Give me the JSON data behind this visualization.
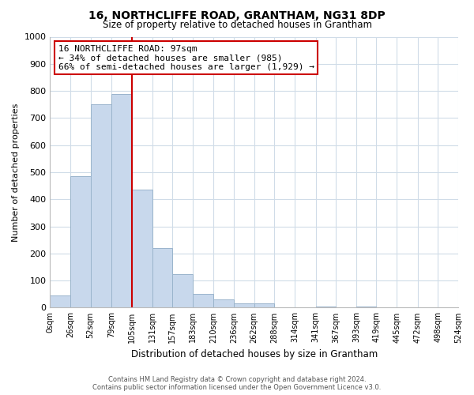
{
  "title": "16, NORTHCLIFFE ROAD, GRANTHAM, NG31 8DP",
  "subtitle": "Size of property relative to detached houses in Grantham",
  "xlabel": "Distribution of detached houses by size in Grantham",
  "ylabel": "Number of detached properties",
  "footer_line1": "Contains HM Land Registry data © Crown copyright and database right 2024.",
  "footer_line2": "Contains public sector information licensed under the Open Government Licence v3.0.",
  "bar_left_edges": [
    0,
    26,
    52,
    79,
    105,
    131,
    157,
    183,
    210,
    236,
    262,
    288,
    314,
    341,
    367,
    393,
    419,
    445,
    472,
    498
  ],
  "bar_widths": [
    26,
    26,
    27,
    26,
    26,
    26,
    26,
    27,
    26,
    26,
    26,
    26,
    27,
    26,
    26,
    26,
    26,
    27,
    26,
    26
  ],
  "bar_heights": [
    45,
    485,
    750,
    790,
    435,
    220,
    125,
    50,
    30,
    15,
    15,
    0,
    0,
    5,
    0,
    5,
    0,
    0,
    0,
    0
  ],
  "bar_color": "#c8d8ec",
  "bar_edgecolor": "#9ab4cc",
  "ylim": [
    0,
    1000
  ],
  "yticks": [
    0,
    100,
    200,
    300,
    400,
    500,
    600,
    700,
    800,
    900,
    1000
  ],
  "xtick_labels": [
    "0sqm",
    "26sqm",
    "52sqm",
    "79sqm",
    "105sqm",
    "131sqm",
    "157sqm",
    "183sqm",
    "210sqm",
    "236sqm",
    "262sqm",
    "288sqm",
    "314sqm",
    "341sqm",
    "367sqm",
    "393sqm",
    "419sqm",
    "445sqm",
    "472sqm",
    "498sqm",
    "524sqm"
  ],
  "vline_x": 105,
  "vline_color": "#cc0000",
  "annotation_line1": "16 NORTHCLIFFE ROAD: 97sqm",
  "annotation_line2": "← 34% of detached houses are smaller (985)",
  "annotation_line3": "66% of semi-detached houses are larger (1,929) →",
  "annotation_box_color": "#ffffff",
  "annotation_box_edgecolor": "#cc0000",
  "background_color": "#ffffff",
  "grid_color": "#d0dce8"
}
